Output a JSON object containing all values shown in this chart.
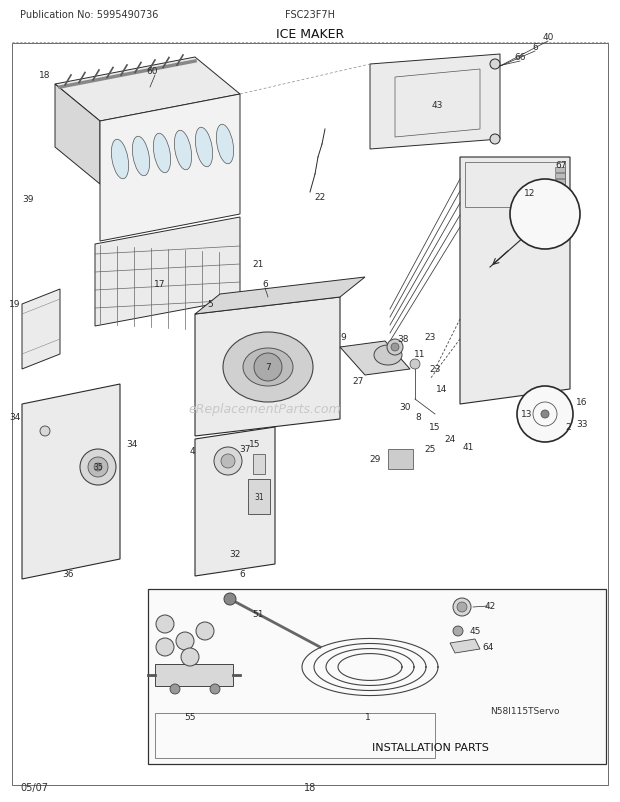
{
  "pub_no": "Publication No: 5995490736",
  "model": "FSC23F7H",
  "title": "ICE MAKER",
  "diagram_id": "N58I115TServo",
  "date": "05/07",
  "page": "18",
  "bg_color": "#ffffff",
  "line_color": "#2a2a2a",
  "fill_light": "#ebebeb",
  "fill_mid": "#d8d8d8",
  "watermark": "eReplacementParts.com",
  "install_label": "INSTALLATION PARTS",
  "wm_color": "#c8c8c8",
  "header_fs": 7.5,
  "label_fs": 6.5
}
